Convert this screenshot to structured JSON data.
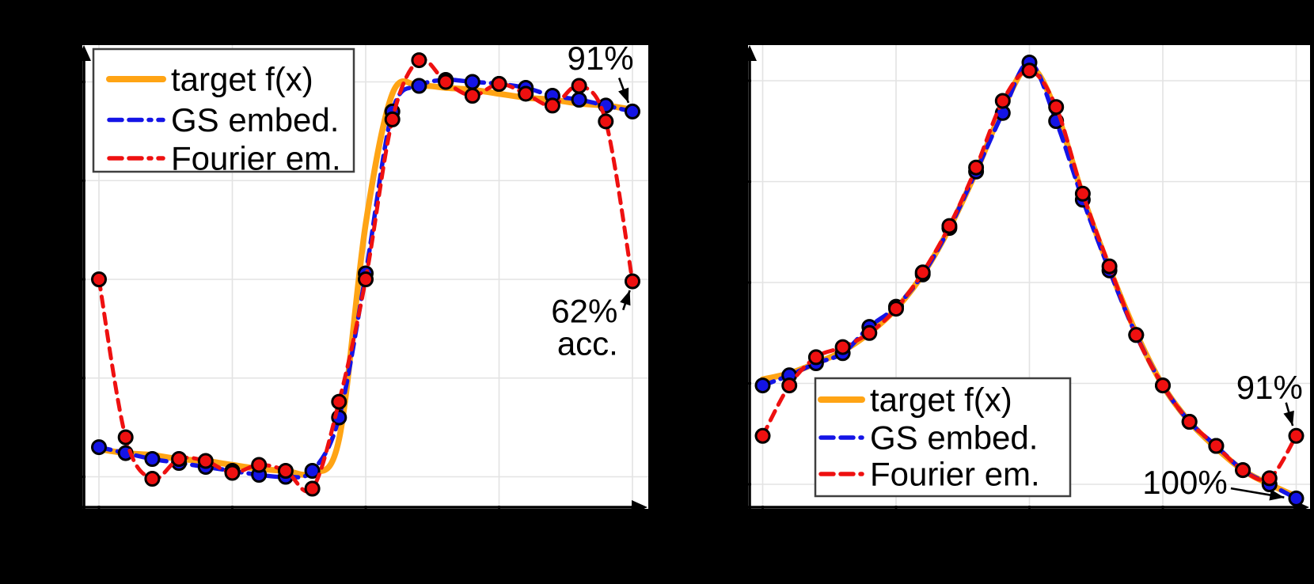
{
  "figure": {
    "background": "#000000",
    "plot_background": "#FFFFFF"
  },
  "chart_data": [
    {
      "id": "left",
      "type": "line",
      "title": "",
      "xlabel": "",
      "ylabel": "",
      "x": [
        -1,
        -0.9,
        -0.8,
        -0.7,
        -0.6,
        -0.5,
        -0.4,
        -0.3,
        -0.2,
        -0.1,
        0,
        0.1,
        0.2,
        0.3,
        0.4,
        0.5,
        0.6,
        0.7,
        0.8,
        0.9,
        1
      ],
      "series": [
        {
          "name": "target f(x)",
          "color": "#FFA414",
          "line": "solid",
          "width": 7.5,
          "marker": false,
          "values": [
            -0.86,
            -0.88,
            -0.89,
            -0.91,
            -0.92,
            -0.94,
            -0.96,
            -0.97,
            -0.98,
            -0.81,
            0.28,
            0.94,
            0.98,
            0.97,
            0.96,
            0.94,
            0.92,
            0.91,
            0.89,
            0.88,
            0.86
          ]
        },
        {
          "name": "GS embed.",
          "color": "#1414E6",
          "line": "dashed",
          "width": 5.5,
          "marker": true,
          "values": [
            -0.85,
            -0.88,
            -0.91,
            -0.93,
            -0.95,
            -0.97,
            -0.99,
            -1.0,
            -0.97,
            -0.7,
            0.03,
            0.85,
            0.98,
            1.01,
            1.0,
            0.99,
            0.97,
            0.93,
            0.91,
            0.88,
            0.85
          ]
        },
        {
          "name": "Fourier em.",
          "color": "#EE1010",
          "line": "dashed",
          "width": 5,
          "marker": true,
          "values": [
            0.0,
            -0.8,
            -1.01,
            -0.91,
            -0.92,
            -0.98,
            -0.94,
            -0.97,
            -1.06,
            -0.62,
            0.0,
            0.81,
            1.11,
            1.0,
            0.93,
            0.99,
            0.94,
            0.88,
            0.98,
            0.8,
            -0.01
          ]
        }
      ],
      "xlim": [
        -1.06,
        1.06
      ],
      "ylim": [
        -1.17,
        1.19
      ],
      "xticks": [
        -1,
        -0.5,
        0,
        0.5,
        1
      ],
      "yticks": [
        -1,
        -0.5,
        0,
        0.5,
        1
      ],
      "grid": true,
      "legend": {
        "position": "top-left",
        "entries": [
          "target f(x)",
          "GS embed.",
          "Fourier em."
        ]
      },
      "annotations": [
        {
          "text": "91%",
          "x": 0.88,
          "y": 1.12,
          "arrow": {
            "from": [
              0.95,
              1.02
            ],
            "to": [
              0.985,
              0.894
            ]
          }
        },
        {
          "text": "62%",
          "text2": "acc.",
          "x": 0.82,
          "y": -0.16,
          "arrow": {
            "from": [
              0.965,
              -0.155
            ],
            "to": [
              0.99,
              -0.056
            ]
          }
        }
      ]
    },
    {
      "id": "right",
      "type": "line",
      "title": "",
      "xlabel": "",
      "ylabel": "",
      "x": [
        -1,
        -0.9,
        -0.8,
        -0.7,
        -0.6,
        -0.5,
        -0.4,
        -0.3,
        -0.2,
        -0.1,
        0,
        0.1,
        0.2,
        0.3,
        0.4,
        0.5,
        0.6,
        0.7,
        0.8,
        0.9,
        1
      ],
      "series": [
        {
          "name": "target f(x)",
          "color": "#FFA414",
          "line": "solid",
          "width": 7.5,
          "marker": false,
          "values": [
            -0.48,
            -0.45,
            -0.4,
            -0.34,
            -0.25,
            -0.13,
            0.04,
            0.27,
            0.55,
            0.86,
            1.07,
            0.85,
            0.43,
            0.07,
            -0.25,
            -0.51,
            -0.69,
            -0.82,
            -0.93,
            -1.0,
            -1.06
          ]
        },
        {
          "name": "GS embed.",
          "color": "#1414E6",
          "line": "dashed",
          "width": 5.5,
          "marker": true,
          "values": [
            -0.51,
            -0.46,
            -0.4,
            -0.35,
            -0.22,
            -0.12,
            0.04,
            0.27,
            0.55,
            0.84,
            1.09,
            0.8,
            0.41,
            0.06,
            -0.26,
            -0.51,
            -0.69,
            -0.81,
            -0.93,
            -1.0,
            -1.07
          ]
        },
        {
          "name": "Fourier em.",
          "color": "#EE1010",
          "line": "dashed",
          "width": 5,
          "marker": true,
          "values": [
            -0.76,
            -0.51,
            -0.37,
            -0.32,
            -0.25,
            -0.13,
            0.05,
            0.28,
            0.57,
            0.9,
            1.05,
            0.87,
            0.44,
            0.08,
            -0.26,
            -0.51,
            -0.69,
            -0.81,
            -0.93,
            -0.97,
            -0.76
          ]
        }
      ],
      "xlim": [
        -1.05,
        1.05
      ],
      "ylim": [
        -1.15,
        1.18
      ],
      "xticks": [
        -1,
        -0.5,
        0,
        0.5,
        1
      ],
      "yticks": [
        -1,
        -0.5,
        0,
        0.5,
        1
      ],
      "grid": true,
      "legend": {
        "position": "bottom-center",
        "entries": [
          "target f(x)",
          "GS embed.",
          "Fourier em."
        ]
      },
      "annotations": [
        {
          "text": "91%",
          "x": 0.9,
          "y": -0.52,
          "arrow": {
            "from": [
              0.962,
              -0.595
            ],
            "to": [
              0.987,
              -0.71
            ]
          }
        },
        {
          "text": "100%",
          "x": 0.583,
          "y": -0.99,
          "arrow": {
            "from": [
              0.755,
              -1.02
            ],
            "to": [
              0.955,
              -1.065
            ]
          }
        }
      ]
    }
  ]
}
